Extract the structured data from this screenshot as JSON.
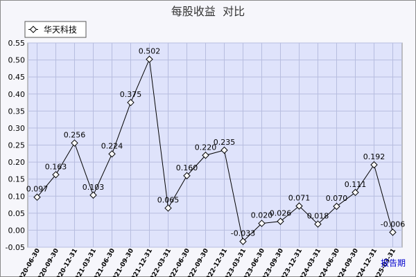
{
  "chart_data": {
    "type": "line",
    "title": "每股收益  对比",
    "xlabel": "报告期",
    "ylabel": "",
    "ylim": [
      -0.05,
      0.55
    ],
    "yticks": [
      "0.55",
      "0.50",
      "0.45",
      "0.40",
      "0.35",
      "0.30",
      "0.25",
      "0.20",
      "0.15",
      "0.10",
      "0.05",
      "0.00",
      "-0.05"
    ],
    "categories": [
      "2020-06-30",
      "2020-09-30",
      "2020-12-31",
      "2021-03-31",
      "2021-06-30",
      "2021-09-30",
      "2021-12-31",
      "2022-03-31",
      "2022-06-30",
      "2022-09-30",
      "2022-12-31",
      "2023-03-31",
      "2023-06-30",
      "2023-09-30",
      "2023-12-31",
      "2024-03-31",
      "2024-06-30",
      "2024-09-30",
      "2024-12-31",
      "2025-03-31"
    ],
    "tick_labels": [
      "2020-06-30",
      "2020-09-30",
      "2020-12-31",
      "2021-03-31",
      "2021-06-30",
      "2021-09-30",
      "2021-12-31",
      "2022-03-31",
      "2022-06-30",
      "2022-09-30",
      "2022-12-31",
      "2023-03-31",
      "2023-06-30",
      "2023-09-30",
      "2023-12-31",
      "2024-03-31",
      "2024-06-30",
      "2024-09-30",
      "2024-12-31",
      "2025-03-31"
    ],
    "series": [
      {
        "name": "华天科技",
        "values": [
          0.097,
          0.163,
          0.256,
          0.103,
          0.224,
          0.375,
          0.502,
          0.065,
          0.16,
          0.22,
          0.235,
          -0.033,
          0.02,
          0.026,
          0.071,
          0.018,
          0.07,
          0.111,
          0.192,
          -0.006
        ],
        "labels": [
          "0.097",
          "0.163",
          "0.256",
          "0.103",
          "0.224",
          "0.375",
          "0.502",
          "0.065",
          "0.160",
          "0.220",
          "0.235",
          "-0.033",
          "0.020",
          "0.026",
          "0.071",
          "0.018",
          "0.070",
          "0.111",
          "0.192",
          "-0.006"
        ]
      }
    ],
    "grid": true,
    "legend": "top-left",
    "colors": {
      "plot_bg": "#dfe3fb",
      "grid": "#b7bddf",
      "line": "#000000",
      "frame": "#8a8a8a"
    }
  }
}
